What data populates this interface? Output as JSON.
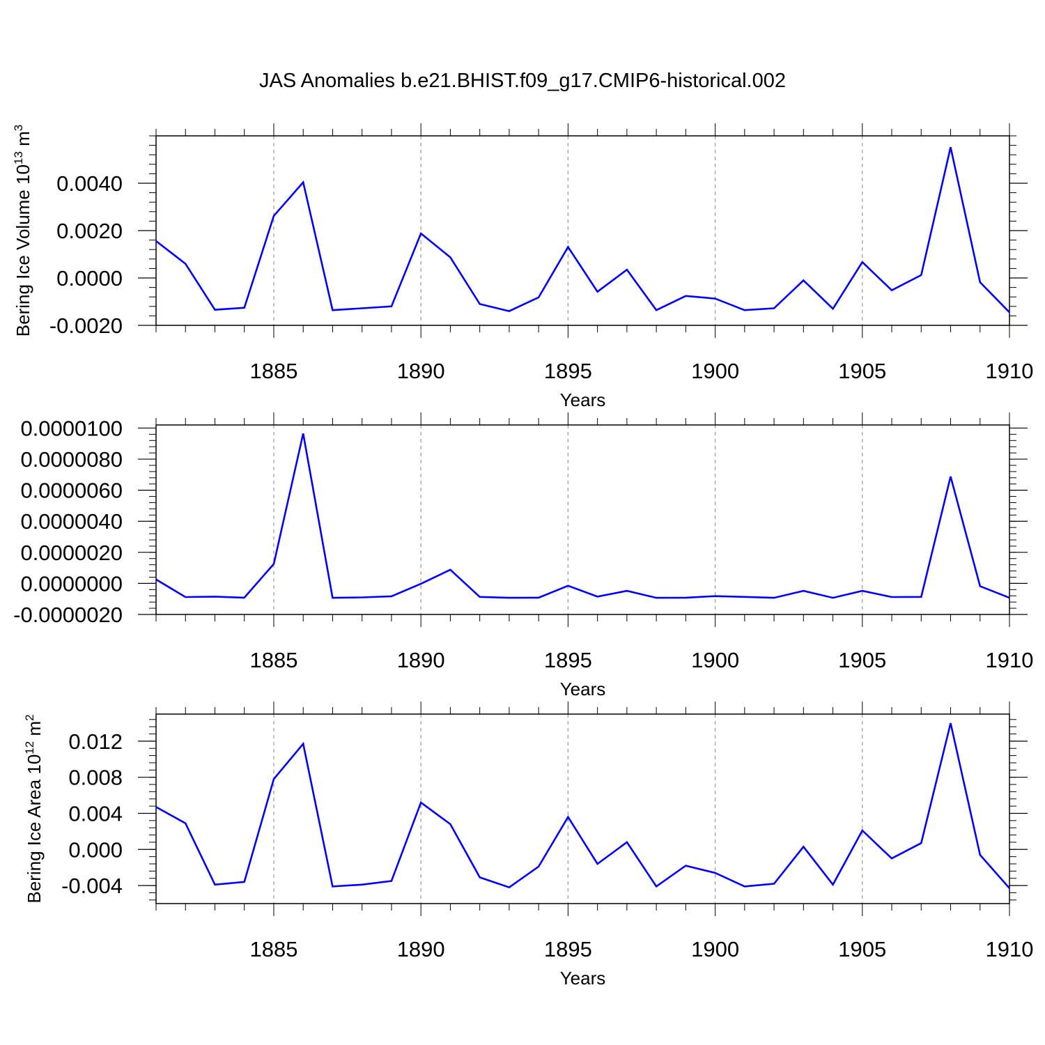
{
  "figure": {
    "title": "JAS Anomalies b.e21.BHIST.f09_g17.CMIP6-historical.002",
    "line_color": "#0000ff",
    "grid_color": "#999999",
    "axis_color": "#000000"
  },
  "chart_data": [
    {
      "type": "line",
      "name": "ice-volume",
      "ylabel_main": "Bering Ice Volume 10",
      "ylabel_sup1": "13",
      "ylabel_mid": " m",
      "ylabel_sup2": "3",
      "xlabel": "Years",
      "xlim": [
        1881,
        1910
      ],
      "ylim": [
        -0.002,
        0.006
      ],
      "yticks": [
        -0.002,
        0.0,
        0.002,
        0.004
      ],
      "ytick_labels": [
        "-0.0020",
        "0.0000",
        "0.0020",
        "0.0040"
      ],
      "y_minor_step": 0.0004,
      "xticks": [
        1885,
        1890,
        1895,
        1900,
        1905,
        1910
      ],
      "xtick_labels": [
        "1885",
        "1890",
        "1895",
        "1900",
        "1905",
        "1910"
      ],
      "x": [
        1881,
        1882,
        1883,
        1884,
        1885,
        1886,
        1887,
        1888,
        1889,
        1890,
        1891,
        1892,
        1893,
        1894,
        1895,
        1896,
        1897,
        1898,
        1899,
        1900,
        1901,
        1902,
        1903,
        1904,
        1905,
        1906,
        1907,
        1908,
        1909,
        1910
      ],
      "series": [
        {
          "name": "Bering Ice Volume",
          "values": [
            0.00156,
            0.0006,
            -0.00134,
            -0.00126,
            0.00262,
            0.00404,
            -0.00136,
            -0.00128,
            -0.0012,
            0.00188,
            0.00087,
            -0.0011,
            -0.0014,
            -0.00082,
            0.00131,
            -0.00058,
            0.00035,
            -0.00136,
            -0.00076,
            -0.00087,
            -0.00136,
            -0.00128,
            -0.0001,
            -0.0013,
            0.00067,
            -0.00052,
            0.00012,
            0.00552,
            -0.00018,
            -0.00145
          ]
        }
      ]
    },
    {
      "type": "line",
      "name": "middle",
      "xlabel": "Years",
      "xlim": [
        1881,
        1910
      ],
      "ylim": [
        -2e-06,
        1.02e-05
      ],
      "yticks": [
        -2e-06,
        0.0,
        2e-06,
        4e-06,
        6e-06,
        8e-06,
        1e-05
      ],
      "ytick_labels": [
        "-0.0000020",
        "0.0000000",
        "0.0000020",
        "0.0000040",
        "0.0000060",
        "0.0000080",
        "0.0000100"
      ],
      "y_minor_step": 4e-07,
      "xticks": [
        1885,
        1890,
        1895,
        1900,
        1905,
        1910
      ],
      "xtick_labels": [
        "1885",
        "1890",
        "1895",
        "1900",
        "1905",
        "1910"
      ],
      "x": [
        1881,
        1882,
        1883,
        1884,
        1885,
        1886,
        1887,
        1888,
        1889,
        1890,
        1891,
        1892,
        1893,
        1894,
        1895,
        1896,
        1897,
        1898,
        1899,
        1900,
        1901,
        1902,
        1903,
        1904,
        1905,
        1906,
        1907,
        1908,
        1909,
        1910
      ],
      "series": [
        {
          "name": "middle-series",
          "values": [
            2.5e-07,
            -8.8e-07,
            -8.5e-07,
            -9.2e-07,
            1.25e-06,
            9.65e-06,
            -9.3e-07,
            -9e-07,
            -8.3e-07,
            -2e-08,
            8.8e-07,
            -8.7e-07,
            -9.3e-07,
            -9.2e-07,
            -1.5e-07,
            -8.5e-07,
            -4.8e-07,
            -9.3e-07,
            -9.2e-07,
            -8.2e-07,
            -8.7e-07,
            -9.3e-07,
            -4.8e-07,
            -9.3e-07,
            -4.8e-07,
            -8.8e-07,
            -8.7e-07,
            6.88e-06,
            -1.8e-07,
            -9.3e-07
          ]
        }
      ]
    },
    {
      "type": "line",
      "name": "ice-area",
      "ylabel_main": "Bering Ice Area 10",
      "ylabel_sup1": "12",
      "ylabel_mid": " m",
      "ylabel_sup2": "2",
      "xlabel": "Years",
      "xlim": [
        1881,
        1910
      ],
      "ylim": [
        -0.006,
        0.015
      ],
      "yticks": [
        -0.004,
        0.0,
        0.004,
        0.008,
        0.012
      ],
      "ytick_labels": [
        "-0.004",
        "0.000",
        "0.004",
        "0.008",
        "0.012"
      ],
      "y_minor_step": 0.0008,
      "xticks": [
        1885,
        1890,
        1895,
        1900,
        1905,
        1910
      ],
      "xtick_labels": [
        "1885",
        "1890",
        "1895",
        "1900",
        "1905",
        "1910"
      ],
      "x": [
        1881,
        1882,
        1883,
        1884,
        1885,
        1886,
        1887,
        1888,
        1889,
        1890,
        1891,
        1892,
        1893,
        1894,
        1895,
        1896,
        1897,
        1898,
        1899,
        1900,
        1901,
        1902,
        1903,
        1904,
        1905,
        1906,
        1907,
        1908,
        1909,
        1910
      ],
      "series": [
        {
          "name": "Bering Ice Area",
          "values": [
            0.0047,
            0.0029,
            -0.0039,
            -0.0036,
            0.0078,
            0.0117,
            -0.0041,
            -0.0039,
            -0.0035,
            0.0052,
            0.0028,
            -0.0031,
            -0.0042,
            -0.0019,
            0.0036,
            -0.0016,
            0.0008,
            -0.0041,
            -0.0018,
            -0.0026,
            -0.0041,
            -0.0038,
            0.0003,
            -0.0039,
            0.0021,
            -0.001,
            0.0007,
            0.014,
            -0.0006,
            -0.0043
          ]
        }
      ]
    }
  ]
}
